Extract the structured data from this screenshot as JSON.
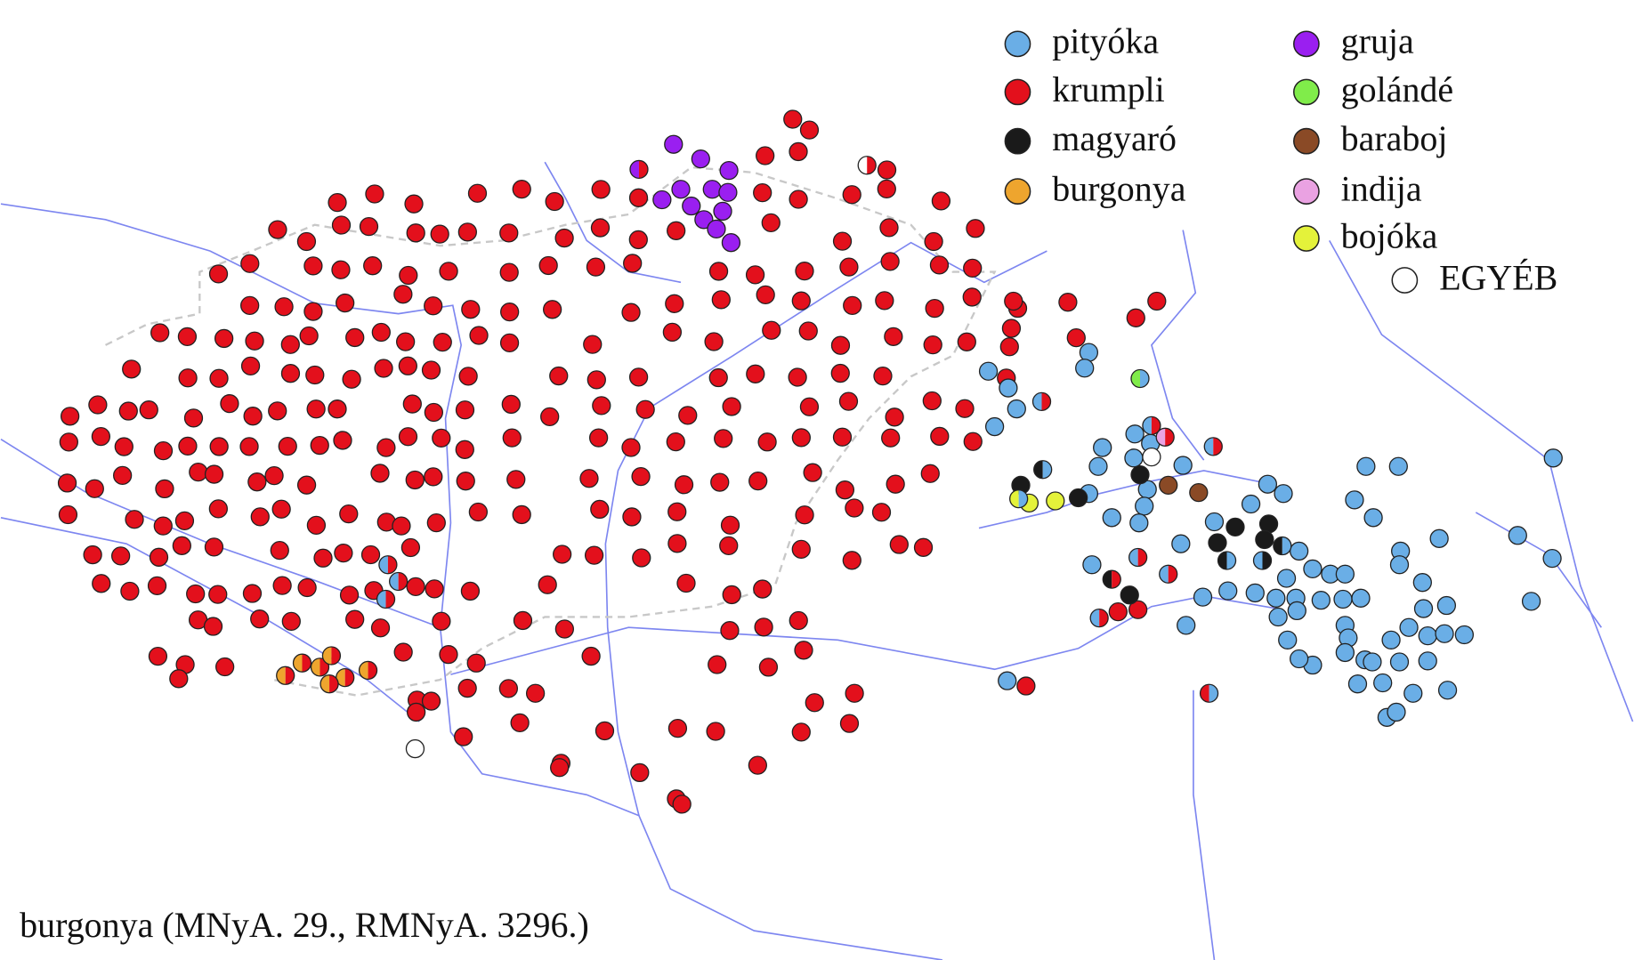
{
  "legend": [
    {
      "label": "pityóka",
      "color": "#6aaee6"
    },
    {
      "label": "krumpli",
      "color": "#e3101c"
    },
    {
      "label": "magyaró",
      "color": "#1a1a1a"
    },
    {
      "label": "burgonya",
      "color": "#eea52e"
    },
    {
      "label": "gruja",
      "color": "#9a1ff0"
    },
    {
      "label": "golándé",
      "color": "#80ec4a"
    },
    {
      "label": "baraboj",
      "color": "#8a4a26"
    },
    {
      "label": "indija",
      "color": "#eaa2e2"
    },
    {
      "label": "bojóka",
      "color": "#e4f23a"
    },
    {
      "label": "EGYÉB",
      "color": "#ffffff"
    }
  ],
  "caption": "burgonya (MNyA. 29., RMNyA. 3296.)"
}
